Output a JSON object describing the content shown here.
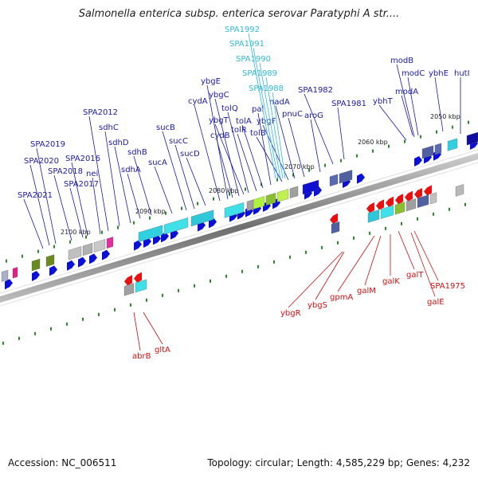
{
  "title": "Salmonella enterica subsp. enterica serovar Paratyphi A str....",
  "footer": {
    "accession": "Accession: NC_006511",
    "topology": "Topology: circular; Length: 4,585,229 bp; Genes: 4,232"
  },
  "colors": {
    "forward_gene": "#0a10d8",
    "reverse_gene": "#e81010",
    "backbone": "#8a8a8a",
    "tick": "#2a8a2a",
    "label_forward": "#1a1aa8",
    "label_reverse": "#cc1010",
    "label_highlight": "#30b8d8"
  },
  "ruler": [
    "2050 kbp",
    "2060 kbp",
    "2070 kbp",
    "2080 kbp",
    "2090 kbp",
    "2100 kbp"
  ],
  "forward_labels": [
    "hutI",
    "ybhE",
    "modB",
    "modC",
    "modA",
    "ybhT",
    "SPA1981",
    "SPA1982",
    "aroG",
    "pnuC",
    "nadA",
    "ybgF",
    "tolB",
    "pal",
    "tolA",
    "tolR",
    "tolQ",
    "ybgT",
    "ybgC",
    "cydB",
    "ybgE",
    "cydA",
    "sucD",
    "sucC",
    "sucB",
    "sucA",
    "sdhB",
    "sdhA",
    "sdhD",
    "sdhC",
    "SPA2012",
    "nei",
    "SPA2016",
    "SPA2017",
    "SPA2018",
    "SPA2019",
    "SPA2020",
    "SPA2021"
  ],
  "highlight_labels": [
    "SPA1992",
    "SPA1991",
    "SPA1990",
    "SPA1989",
    "SPA1988"
  ],
  "reverse_labels": [
    "ybgR",
    "ybgS",
    "gpmA",
    "galM",
    "galK",
    "galT",
    "SPA1975",
    "galE",
    "abrB",
    "gltA"
  ]
}
